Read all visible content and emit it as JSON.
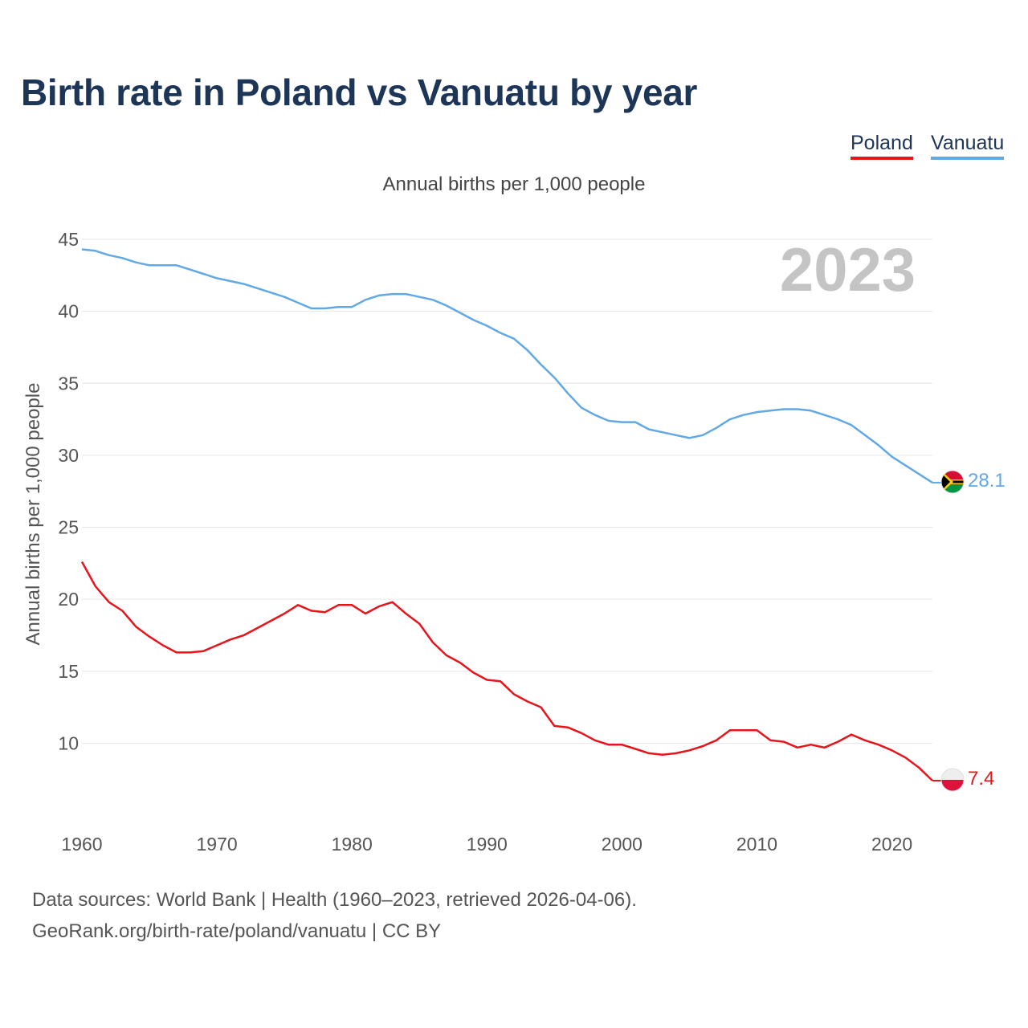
{
  "title": "Birth rate in Poland vs Vanuatu by year",
  "legend": [
    {
      "name": "Poland",
      "color": "#e8141b"
    },
    {
      "name": "Vanuatu",
      "color": "#62a8e5"
    }
  ],
  "subtitle": "Annual births per 1,000 people",
  "watermark_year": "2023",
  "footer": {
    "line1": "Data sources: World Bank | Health (1960–2023, retrieved 2026-04-06).",
    "line2": "GeoRank.org/birth-rate/poland/vanuatu | CC BY"
  },
  "chart_data": {
    "type": "line",
    "title": "Birth rate in Poland vs Vanuatu by year",
    "xlabel": "",
    "ylabel": "Annual births per 1,000 people",
    "xlim": [
      1960,
      2023
    ],
    "ylim": [
      5,
      45
    ],
    "yticks": [
      10,
      15,
      20,
      25,
      30,
      35,
      40,
      45
    ],
    "xticks": [
      1960,
      1970,
      1980,
      1990,
      2000,
      2010,
      2020
    ],
    "grid": true,
    "legend_position": "top-right",
    "x": [
      1960,
      1961,
      1962,
      1963,
      1964,
      1965,
      1966,
      1967,
      1968,
      1969,
      1970,
      1971,
      1972,
      1973,
      1974,
      1975,
      1976,
      1977,
      1978,
      1979,
      1980,
      1981,
      1982,
      1983,
      1984,
      1985,
      1986,
      1987,
      1988,
      1989,
      1990,
      1991,
      1992,
      1993,
      1994,
      1995,
      1996,
      1997,
      1998,
      1999,
      2000,
      2001,
      2002,
      2003,
      2004,
      2005,
      2006,
      2007,
      2008,
      2009,
      2010,
      2011,
      2012,
      2013,
      2014,
      2015,
      2016,
      2017,
      2018,
      2019,
      2020,
      2021,
      2022,
      2023
    ],
    "series": [
      {
        "name": "Poland",
        "color": "#e8141b",
        "end_label": "7.4",
        "values": [
          22.6,
          20.9,
          19.8,
          19.2,
          18.1,
          17.4,
          16.8,
          16.3,
          16.3,
          16.4,
          16.8,
          17.2,
          17.5,
          18.0,
          18.5,
          19.0,
          19.6,
          19.2,
          19.1,
          19.6,
          19.6,
          19.0,
          19.5,
          19.8,
          19.0,
          18.3,
          17.0,
          16.1,
          15.6,
          14.9,
          14.4,
          14.3,
          13.4,
          12.9,
          12.5,
          11.2,
          11.1,
          10.7,
          10.2,
          9.9,
          9.9,
          9.6,
          9.3,
          9.2,
          9.3,
          9.5,
          9.8,
          10.2,
          10.9,
          10.9,
          10.9,
          10.2,
          10.1,
          9.7,
          9.9,
          9.7,
          10.1,
          10.6,
          10.2,
          9.9,
          9.5,
          9.0,
          8.3,
          7.4
        ]
      },
      {
        "name": "Vanuatu",
        "color": "#62a8e5",
        "end_label": "28.1",
        "values": [
          44.3,
          44.2,
          43.9,
          43.7,
          43.4,
          43.2,
          43.2,
          43.2,
          42.9,
          42.6,
          42.3,
          42.1,
          41.9,
          41.6,
          41.3,
          41.0,
          40.6,
          40.2,
          40.2,
          40.3,
          40.3,
          40.8,
          41.1,
          41.2,
          41.2,
          41.0,
          40.8,
          40.4,
          39.9,
          39.4,
          39.0,
          38.5,
          38.1,
          37.3,
          36.3,
          35.4,
          34.3,
          33.3,
          32.8,
          32.4,
          32.3,
          32.3,
          31.8,
          31.6,
          31.4,
          31.2,
          31.4,
          31.9,
          32.5,
          32.8,
          33.0,
          33.1,
          33.2,
          33.2,
          33.1,
          32.8,
          32.5,
          32.1,
          31.4,
          30.7,
          29.9,
          29.3,
          28.7,
          28.1
        ]
      }
    ]
  }
}
